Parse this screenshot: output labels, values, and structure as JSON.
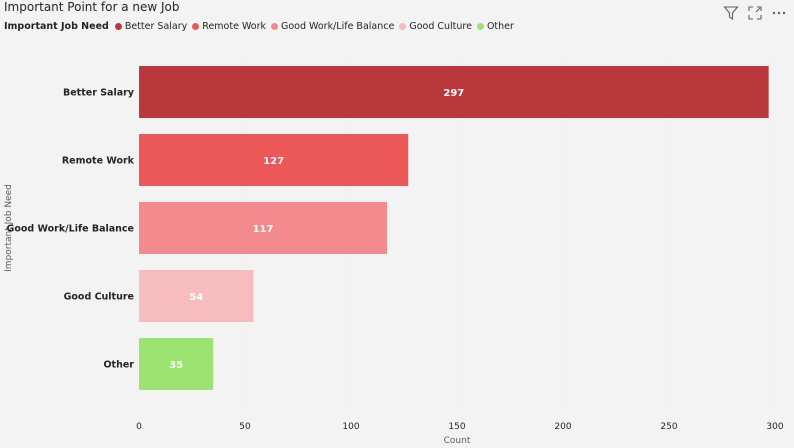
{
  "title": "Important Point for a new Job",
  "toolbar": {
    "icons": [
      "filter-icon",
      "focus-mode-icon",
      "more-options-icon"
    ]
  },
  "legend": {
    "title": "Important Job Need",
    "items": [
      {
        "label": "Better Salary",
        "color": "#b8383b"
      },
      {
        "label": "Remote Work",
        "color": "#ec5758"
      },
      {
        "label": "Good Work/Life Balance",
        "color": "#f38b8e"
      },
      {
        "label": "Good Culture",
        "color": "#f7bcbd"
      },
      {
        "label": "Other",
        "color": "#9ce471"
      }
    ]
  },
  "chart_data": {
    "type": "bar",
    "orientation": "horizontal",
    "categories": [
      "Better Salary",
      "Remote Work",
      "Good Work/Life Balance",
      "Good Culture",
      "Other"
    ],
    "values": [
      297,
      127,
      117,
      54,
      35
    ],
    "colors": [
      "#b8383b",
      "#ec5758",
      "#f38b8e",
      "#f7bcbd",
      "#9ce471"
    ],
    "xlabel": "Count",
    "ylabel": "Important Job Need",
    "xlim": [
      0,
      300
    ],
    "xticks": [
      0,
      50,
      100,
      150,
      200,
      250,
      300
    ],
    "grid": true,
    "data_labels": true
  }
}
